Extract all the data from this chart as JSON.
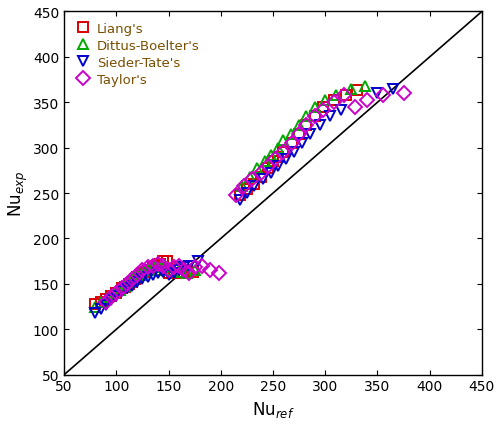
{
  "xlabel": "Nu$_{ref}$",
  "ylabel": "Nu$_{exp}$",
  "xlim": [
    50,
    450
  ],
  "ylim": [
    50,
    450
  ],
  "xticks": [
    50,
    100,
    150,
    200,
    250,
    300,
    350,
    400,
    450
  ],
  "yticks": [
    50,
    100,
    150,
    200,
    250,
    300,
    350,
    400,
    450
  ],
  "liang_x": [
    80,
    85,
    90,
    95,
    100,
    105,
    108,
    112,
    115,
    118,
    120,
    123,
    125,
    128,
    130,
    133,
    135,
    138,
    140,
    142,
    145,
    148,
    150,
    155,
    158,
    162,
    168,
    173,
    218,
    225,
    232,
    238,
    245,
    250,
    255,
    260,
    268,
    275,
    282,
    290,
    298,
    308,
    320,
    330
  ],
  "liang_y": [
    128,
    130,
    133,
    137,
    140,
    145,
    147,
    150,
    152,
    155,
    157,
    160,
    162,
    163,
    165,
    165,
    168,
    170,
    168,
    172,
    175,
    175,
    162,
    165,
    168,
    162,
    165,
    163,
    248,
    255,
    260,
    268,
    278,
    285,
    290,
    295,
    305,
    315,
    325,
    335,
    345,
    352,
    358,
    363
  ],
  "dittus_x": [
    80,
    85,
    92,
    98,
    103,
    108,
    112,
    115,
    118,
    122,
    125,
    128,
    132,
    136,
    140,
    143,
    147,
    152,
    157,
    163,
    168,
    175,
    220,
    228,
    235,
    242,
    248,
    255,
    260,
    267,
    275,
    282,
    290,
    300,
    310,
    325,
    338
  ],
  "dittus_y": [
    125,
    130,
    135,
    140,
    143,
    148,
    152,
    155,
    158,
    160,
    162,
    165,
    167,
    168,
    165,
    168,
    170,
    165,
    168,
    163,
    162,
    165,
    258,
    268,
    278,
    285,
    292,
    300,
    308,
    315,
    325,
    335,
    345,
    352,
    358,
    365,
    368
  ],
  "sieder_x": [
    80,
    85,
    90,
    95,
    100,
    105,
    110,
    115,
    120,
    125,
    130,
    135,
    140,
    145,
    150,
    155,
    160,
    165,
    170,
    178,
    218,
    225,
    232,
    240,
    248,
    255,
    262,
    270,
    278,
    285,
    295,
    305,
    315,
    350,
    365
  ],
  "sieder_y": [
    118,
    122,
    127,
    132,
    137,
    142,
    145,
    148,
    152,
    155,
    158,
    160,
    162,
    163,
    160,
    162,
    165,
    168,
    170,
    175,
    242,
    250,
    258,
    265,
    272,
    280,
    288,
    295,
    305,
    315,
    325,
    335,
    342,
    360,
    365
  ],
  "taylor_x": [
    90,
    95,
    100,
    105,
    110,
    115,
    120,
    125,
    130,
    135,
    140,
    145,
    150,
    155,
    160,
    165,
    170,
    175,
    182,
    190,
    198,
    215,
    222,
    230,
    238,
    245,
    252,
    260,
    268,
    275,
    282,
    290,
    298,
    308,
    318,
    328,
    340,
    355,
    375
  ],
  "taylor_y": [
    130,
    135,
    140,
    145,
    150,
    155,
    160,
    165,
    168,
    170,
    172,
    170,
    165,
    168,
    170,
    165,
    162,
    168,
    170,
    165,
    162,
    248,
    258,
    265,
    272,
    280,
    288,
    295,
    305,
    315,
    325,
    335,
    342,
    350,
    358,
    345,
    352,
    358,
    360
  ],
  "liang_color": "#dd0000",
  "dittus_color": "#00aa00",
  "sieder_color": "#0000cc",
  "taylor_color": "#cc00cc",
  "legend_text_color": "#7a5000",
  "marker_size": 7,
  "line_width": 1.2
}
